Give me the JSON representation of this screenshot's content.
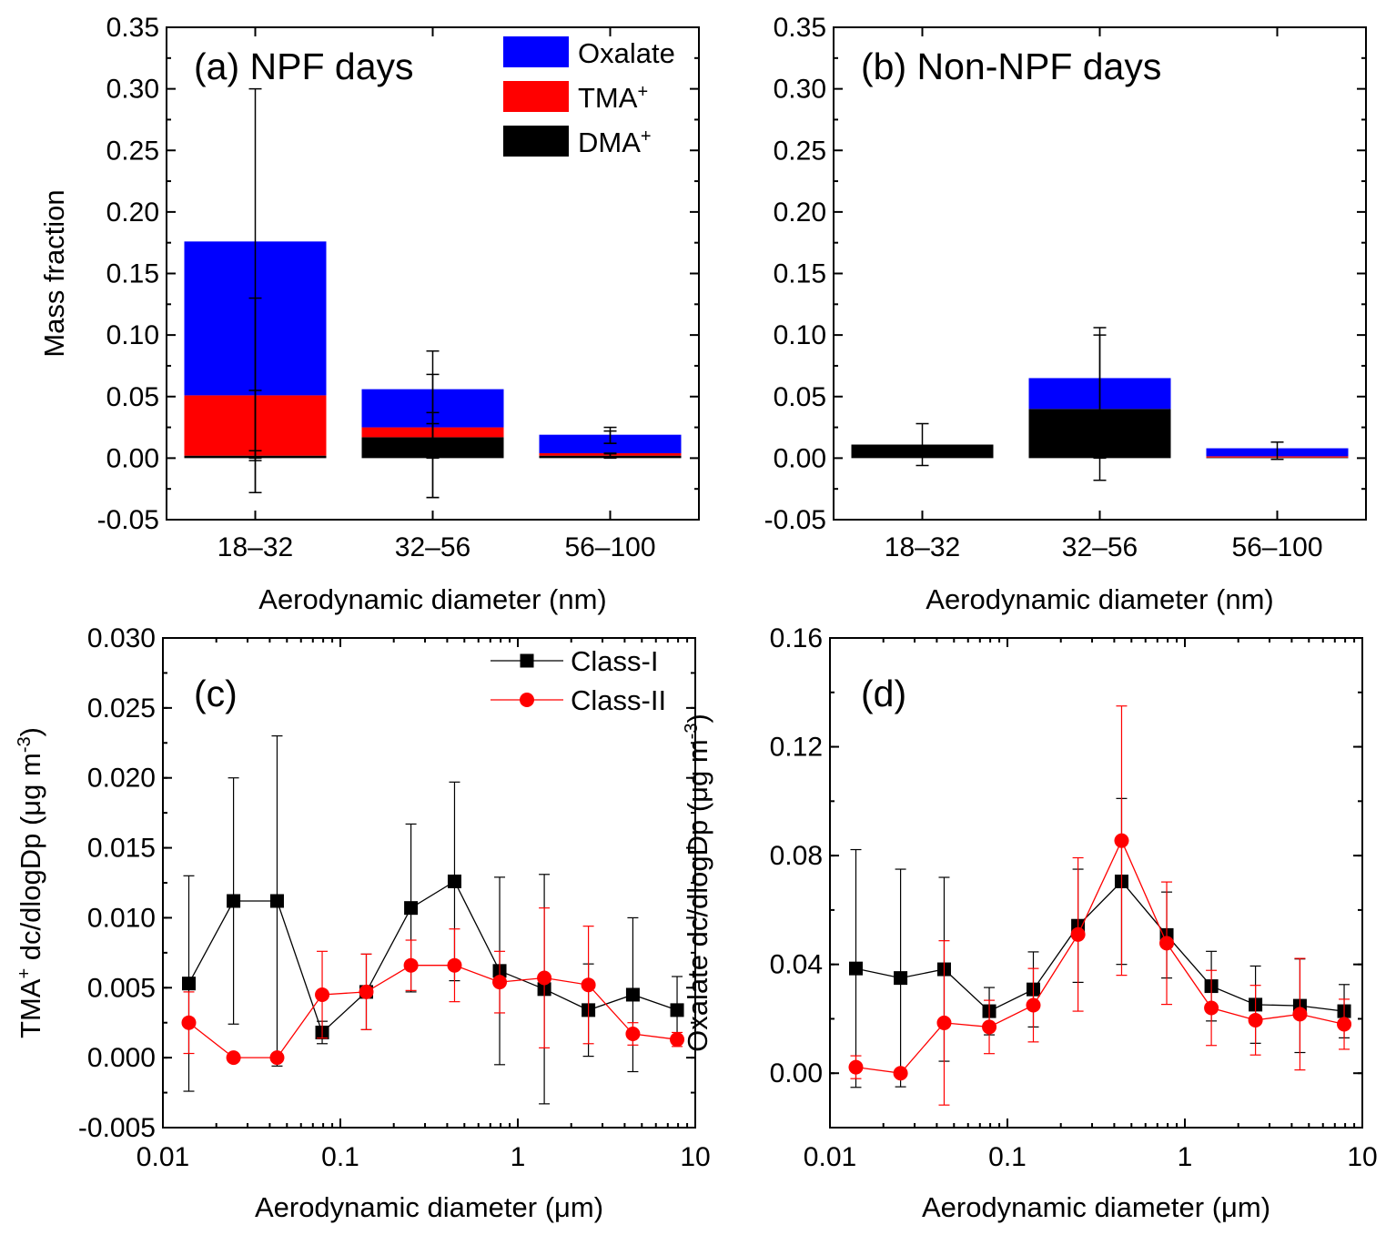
{
  "chart_data": [
    {
      "id": "a",
      "type": "bar",
      "stacked": true,
      "title": "(a) NPF days",
      "xlabel": "Aerodynamic diameter (nm)",
      "ylabel": "Mass fraction",
      "ylim": [
        -0.05,
        0.35
      ],
      "yticks": [
        "-0.05",
        "0.00",
        "0.05",
        "0.10",
        "0.15",
        "0.20",
        "0.25",
        "0.30",
        "0.35"
      ],
      "categories": [
        "18–32",
        "32–56",
        "56–100"
      ],
      "legend_position": "top-right",
      "legend": [
        {
          "label": "Oxalate",
          "sup": "",
          "color": "#0000ff"
        },
        {
          "label": "TMA",
          "sup": "+",
          "color": "#ff0000"
        },
        {
          "label": "DMA",
          "sup": "+",
          "color": "#000000"
        }
      ],
      "series": [
        {
          "values": [
            0.002,
            0.017,
            0.002
          ],
          "color": "#000000",
          "err_low": [
            -0.002,
            0.006,
            0.0005
          ],
          "err_high": [
            0.006,
            0.037,
            0.0035
          ]
        },
        {
          "values": [
            0.049,
            0.008,
            0.002
          ],
          "color": "#ff0000",
          "err_low": [
            0.0,
            0.0,
            0.0
          ],
          "err_high": [
            0.055,
            0.028,
            0.004
          ]
        },
        {
          "values": [
            0.125,
            0.031,
            0.015
          ],
          "color": "#0000ff",
          "err_low": [
            -0.028,
            -0.032,
            0.012
          ],
          "err_high": [
            0.13,
            0.068,
            0.022
          ]
        }
      ],
      "errorbars_extra": [
        {
          "category": 0,
          "low": -0.028,
          "high": 0.3
        },
        {
          "category": 1,
          "low": -0.032,
          "high": 0.087
        },
        {
          "category": 2,
          "low": 0.012,
          "high": 0.025
        }
      ]
    },
    {
      "id": "b",
      "type": "bar",
      "stacked": true,
      "title": "(b) Non-NPF days",
      "xlabel": "Aerodynamic diameter (nm)",
      "ylabel": "",
      "ylim": [
        -0.05,
        0.35
      ],
      "yticks": [
        "-0.05",
        "0.00",
        "0.05",
        "0.10",
        "0.15",
        "0.20",
        "0.25",
        "0.30",
        "0.35"
      ],
      "categories": [
        "18–32",
        "32–56",
        "56–100"
      ],
      "series": [
        {
          "values": [
            0.011,
            0.04,
            0.0005
          ],
          "color": "#000000"
        },
        {
          "values": [
            0.0,
            0.0,
            0.001
          ],
          "color": "#ff0000"
        },
        {
          "values": [
            0.0,
            0.025,
            0.0065
          ],
          "color": "#0000ff"
        }
      ],
      "errorbars_extra": [
        {
          "category": 0,
          "low": -0.006,
          "high": 0.028
        },
        {
          "category": 1,
          "low": -0.018,
          "high": 0.106
        },
        {
          "category": 1,
          "low": 0.0,
          "high": 0.1
        },
        {
          "category": 2,
          "low": -0.001,
          "high": 0.013
        }
      ]
    },
    {
      "id": "c",
      "type": "line",
      "xscale": "log",
      "title": "(c)",
      "xlabel": "Aerodynamic diameter (μm)",
      "ylabel_main": "TMA",
      "ylabel_sup": "+",
      "ylabel_rest": " dc/dlogDp (μg m",
      "ylabel_sup2": "-3",
      "ylabel_end": ")",
      "xlim": [
        0.01,
        10
      ],
      "xticks": [
        {
          "v": 0.01,
          "label": "0.01"
        },
        {
          "v": 0.1,
          "label": "0.1"
        },
        {
          "v": 1,
          "label": "1"
        },
        {
          "v": 10,
          "label": "10"
        }
      ],
      "ylim": [
        -0.005,
        0.03
      ],
      "yticks": [
        "-0.005",
        "0.000",
        "0.005",
        "0.010",
        "0.015",
        "0.020",
        "0.025",
        "0.030"
      ],
      "legend_position": "top-right",
      "x": [
        0.014,
        0.025,
        0.044,
        0.079,
        0.14,
        0.25,
        0.44,
        0.79,
        1.41,
        2.5,
        4.45,
        7.9
      ],
      "series": [
        {
          "name": "Class-I",
          "color": "#000000",
          "marker": "square",
          "values": [
            0.0053,
            0.0112,
            0.0112,
            0.0018,
            0.0047,
            0.0107,
            0.0126,
            0.0062,
            0.0049,
            0.0034,
            0.0045,
            0.0034
          ],
          "err": [
            0.0077,
            0.0088,
            0.0118,
            0.0008,
            0.0027,
            0.006,
            0.0071,
            0.0067,
            0.0082,
            0.0033,
            0.0055,
            0.0024
          ]
        },
        {
          "name": "Class-II",
          "color": "#ff0000",
          "marker": "circle",
          "values": [
            0.0025,
            0.0,
            0.0,
            0.0045,
            0.0047,
            0.0066,
            0.0066,
            0.0054,
            0.0057,
            0.0052,
            0.0017,
            0.0013
          ],
          "err": [
            0.0022,
            0.0,
            0.0,
            0.0031,
            0.0027,
            0.0018,
            0.0026,
            0.0022,
            0.005,
            0.0042,
            0.0008,
            0.0005
          ]
        }
      ]
    },
    {
      "id": "d",
      "type": "line",
      "xscale": "log",
      "title": "(d)",
      "xlabel": "Aerodynamic diameter (μm)",
      "ylabel_main": "Oxalate dc/dlogDp (μg m",
      "ylabel_sup": "-3",
      "ylabel_end": ")",
      "xlim": [
        0.01,
        10
      ],
      "xticks": [
        {
          "v": 0.01,
          "label": "0.01"
        },
        {
          "v": 0.1,
          "label": "0.1"
        },
        {
          "v": 1,
          "label": "1"
        },
        {
          "v": 10,
          "label": "10"
        }
      ],
      "ylim": [
        -0.02,
        0.16
      ],
      "yticks": [
        {
          "v": 0.0,
          "label": "0.00"
        },
        {
          "v": 0.04,
          "label": "0.04"
        },
        {
          "v": 0.08,
          "label": "0.08"
        },
        {
          "v": 0.12,
          "label": "0.12"
        },
        {
          "v": 0.16,
          "label": "0.16"
        }
      ],
      "x": [
        0.014,
        0.025,
        0.044,
        0.079,
        0.14,
        0.25,
        0.44,
        0.79,
        1.41,
        2.5,
        4.45,
        7.9
      ],
      "series": [
        {
          "color": "#000000",
          "marker": "square",
          "values": [
            0.0385,
            0.035,
            0.0382,
            0.0228,
            0.0308,
            0.0542,
            0.0705,
            0.0508,
            0.032,
            0.0252,
            0.0248,
            0.0228
          ],
          "err": [
            0.0437,
            0.04,
            0.0338,
            0.0087,
            0.0138,
            0.0208,
            0.0305,
            0.0158,
            0.0128,
            0.0142,
            0.0172,
            0.0098
          ]
        },
        {
          "color": "#ff0000",
          "marker": "circle",
          "values": [
            0.0022,
            0.0,
            0.0185,
            0.017,
            0.025,
            0.051,
            0.0855,
            0.0478,
            0.024,
            0.0195,
            0.0217,
            0.018
          ],
          "err": [
            0.0042,
            0.0,
            0.0302,
            0.0098,
            0.0135,
            0.0282,
            0.0495,
            0.0225,
            0.0138,
            0.0128,
            0.0205,
            0.0092
          ]
        }
      ]
    }
  ]
}
